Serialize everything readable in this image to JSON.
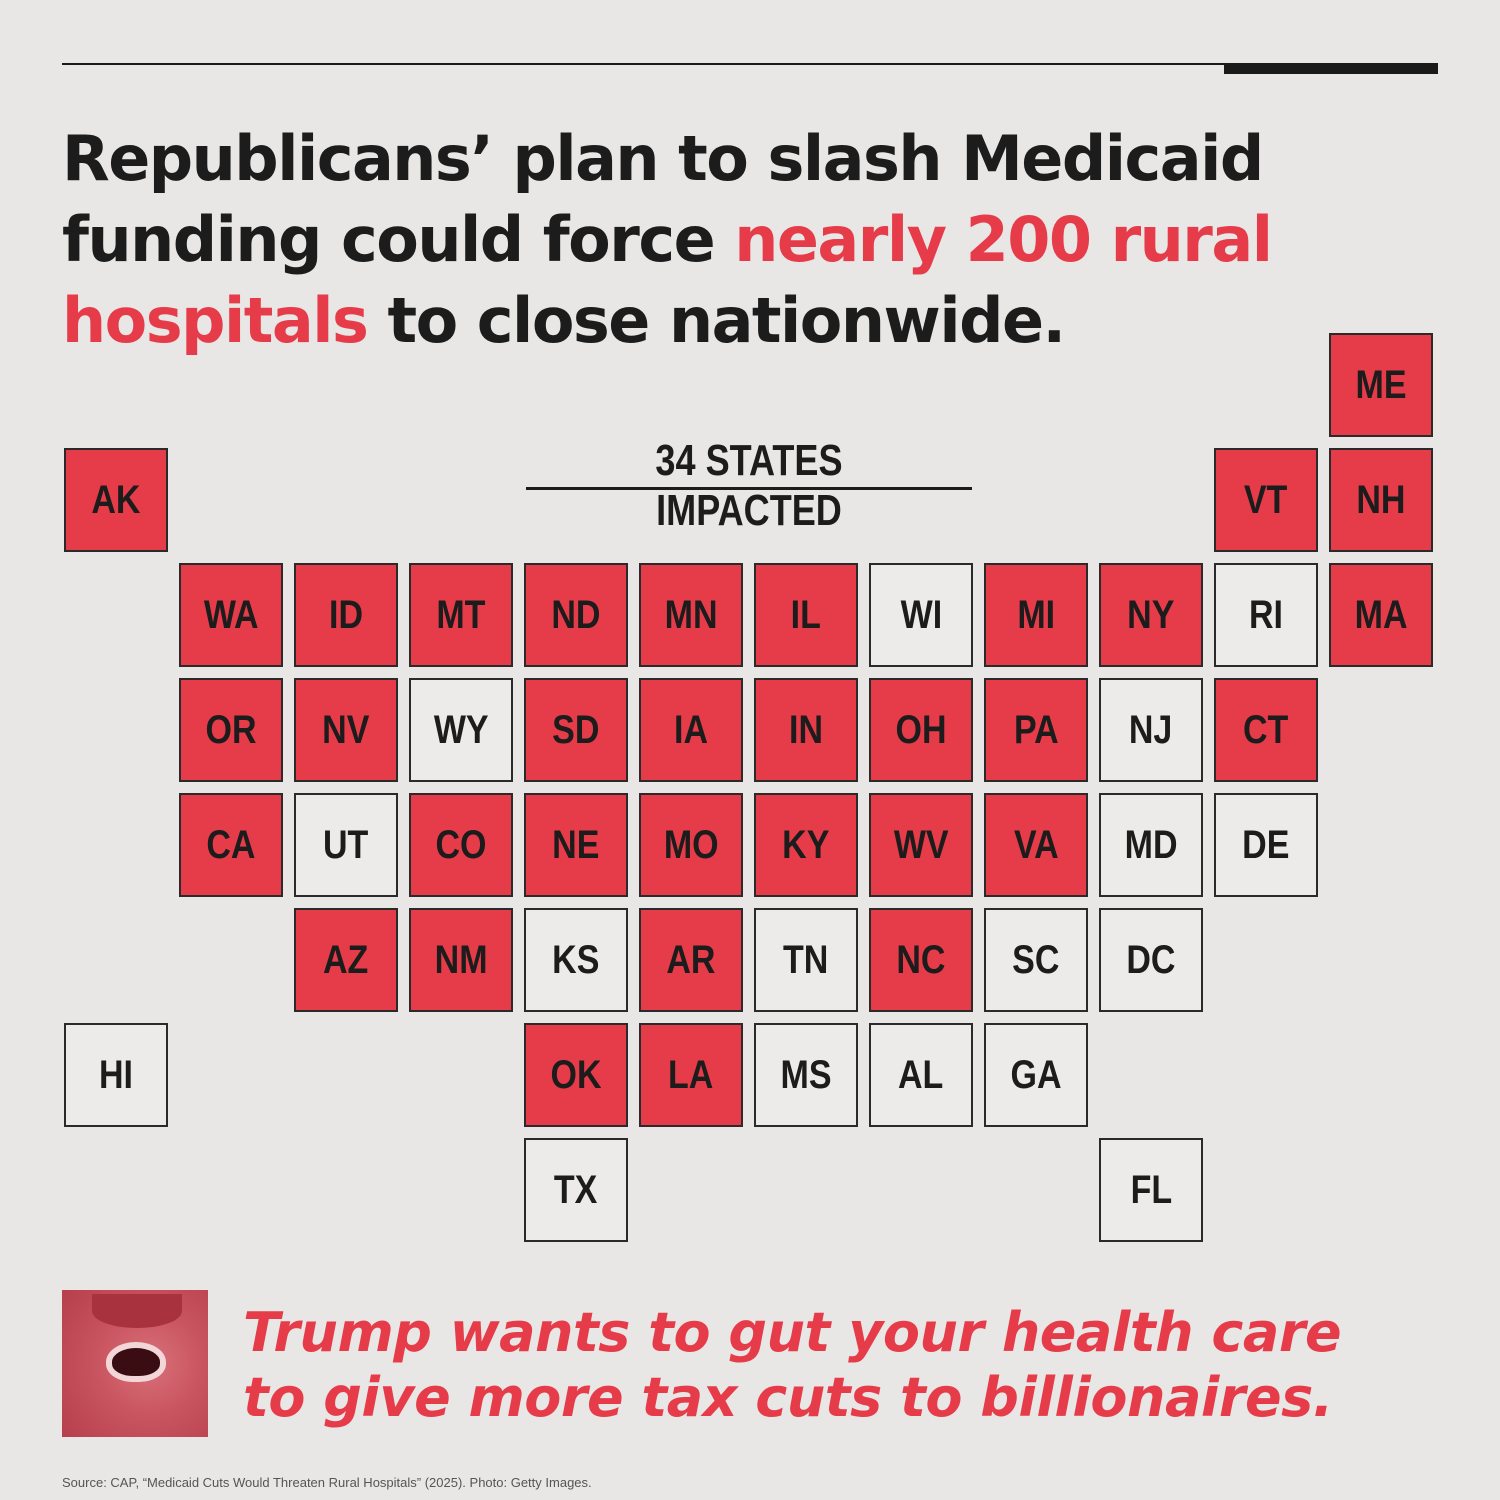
{
  "headline": {
    "part1": "Republicans’ plan to slash Medicaid funding could force ",
    "highlight": "nearly 200 rural hospitals",
    "part2": " to close nationwide."
  },
  "subtitle": "34 STATES IMPACTED",
  "colors": {
    "impacted": "#e63c4a",
    "not_impacted": "#ecebe9",
    "text": "#1c1c1c"
  },
  "states": [
    {
      "code": "ME",
      "impacted": true,
      "col": 11,
      "row": 0
    },
    {
      "code": "AK",
      "impacted": true,
      "col": 0,
      "row": 1
    },
    {
      "code": "VT",
      "impacted": true,
      "col": 10,
      "row": 1
    },
    {
      "code": "NH",
      "impacted": true,
      "col": 11,
      "row": 1
    },
    {
      "code": "WA",
      "impacted": true,
      "col": 1,
      "row": 2
    },
    {
      "code": "ID",
      "impacted": true,
      "col": 2,
      "row": 2
    },
    {
      "code": "MT",
      "impacted": true,
      "col": 3,
      "row": 2
    },
    {
      "code": "ND",
      "impacted": true,
      "col": 4,
      "row": 2
    },
    {
      "code": "MN",
      "impacted": true,
      "col": 5,
      "row": 2
    },
    {
      "code": "IL",
      "impacted": true,
      "col": 6,
      "row": 2
    },
    {
      "code": "WI",
      "impacted": false,
      "col": 7,
      "row": 2
    },
    {
      "code": "MI",
      "impacted": true,
      "col": 8,
      "row": 2
    },
    {
      "code": "NY",
      "impacted": true,
      "col": 9,
      "row": 2
    },
    {
      "code": "RI",
      "impacted": false,
      "col": 10,
      "row": 2
    },
    {
      "code": "MA",
      "impacted": true,
      "col": 11,
      "row": 2
    },
    {
      "code": "OR",
      "impacted": true,
      "col": 1,
      "row": 3
    },
    {
      "code": "NV",
      "impacted": true,
      "col": 2,
      "row": 3
    },
    {
      "code": "WY",
      "impacted": false,
      "col": 3,
      "row": 3
    },
    {
      "code": "SD",
      "impacted": true,
      "col": 4,
      "row": 3
    },
    {
      "code": "IA",
      "impacted": true,
      "col": 5,
      "row": 3
    },
    {
      "code": "IN",
      "impacted": true,
      "col": 6,
      "row": 3
    },
    {
      "code": "OH",
      "impacted": true,
      "col": 7,
      "row": 3
    },
    {
      "code": "PA",
      "impacted": true,
      "col": 8,
      "row": 3
    },
    {
      "code": "NJ",
      "impacted": false,
      "col": 9,
      "row": 3
    },
    {
      "code": "CT",
      "impacted": true,
      "col": 10,
      "row": 3
    },
    {
      "code": "CA",
      "impacted": true,
      "col": 1,
      "row": 4
    },
    {
      "code": "UT",
      "impacted": false,
      "col": 2,
      "row": 4
    },
    {
      "code": "CO",
      "impacted": true,
      "col": 3,
      "row": 4
    },
    {
      "code": "NE",
      "impacted": true,
      "col": 4,
      "row": 4
    },
    {
      "code": "MO",
      "impacted": true,
      "col": 5,
      "row": 4
    },
    {
      "code": "KY",
      "impacted": true,
      "col": 6,
      "row": 4
    },
    {
      "code": "WV",
      "impacted": true,
      "col": 7,
      "row": 4
    },
    {
      "code": "VA",
      "impacted": true,
      "col": 8,
      "row": 4
    },
    {
      "code": "MD",
      "impacted": false,
      "col": 9,
      "row": 4
    },
    {
      "code": "DE",
      "impacted": false,
      "col": 10,
      "row": 4
    },
    {
      "code": "AZ",
      "impacted": true,
      "col": 2,
      "row": 5
    },
    {
      "code": "NM",
      "impacted": true,
      "col": 3,
      "row": 5
    },
    {
      "code": "KS",
      "impacted": false,
      "col": 4,
      "row": 5
    },
    {
      "code": "AR",
      "impacted": true,
      "col": 5,
      "row": 5
    },
    {
      "code": "TN",
      "impacted": false,
      "col": 6,
      "row": 5
    },
    {
      "code": "NC",
      "impacted": true,
      "col": 7,
      "row": 5
    },
    {
      "code": "SC",
      "impacted": false,
      "col": 8,
      "row": 5
    },
    {
      "code": "DC",
      "impacted": false,
      "col": 9,
      "row": 5
    },
    {
      "code": "HI",
      "impacted": false,
      "col": 0,
      "row": 6
    },
    {
      "code": "OK",
      "impacted": true,
      "col": 4,
      "row": 6
    },
    {
      "code": "LA",
      "impacted": true,
      "col": 5,
      "row": 6
    },
    {
      "code": "MS",
      "impacted": false,
      "col": 6,
      "row": 6
    },
    {
      "code": "AL",
      "impacted": false,
      "col": 7,
      "row": 6
    },
    {
      "code": "GA",
      "impacted": false,
      "col": 8,
      "row": 6
    },
    {
      "code": "TX",
      "impacted": false,
      "col": 4,
      "row": 7
    },
    {
      "code": "FL",
      "impacted": false,
      "col": 9,
      "row": 7
    }
  ],
  "tagline": {
    "line1": "Trump wants to gut your health care",
    "line2": "to give more tax cuts to billionaires."
  },
  "source": "Source: CAP, “Medicaid Cuts Would Threaten Rural Hospitals” (2025). Photo: Getty Images."
}
